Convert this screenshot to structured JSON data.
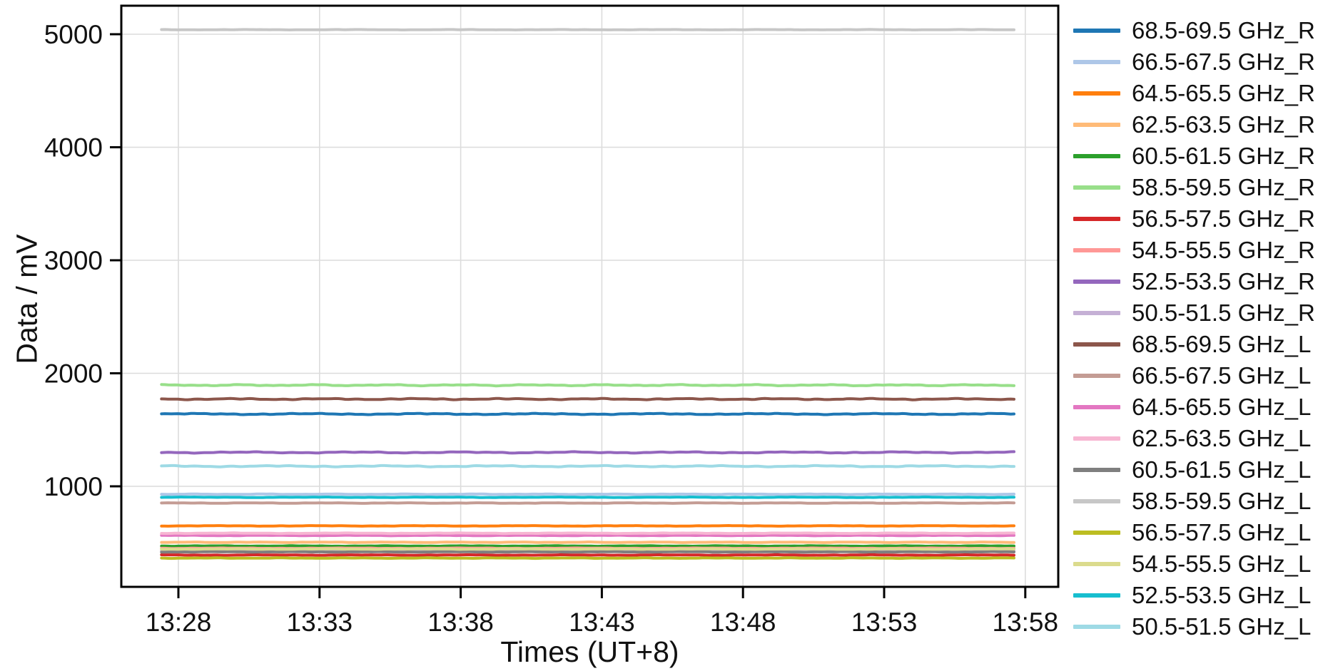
{
  "chart_data": {
    "type": "line",
    "title": "",
    "xlabel": "Times (UT+8)",
    "ylabel": "Data / mV",
    "x_tick_labels": [
      "13:28",
      "13:33",
      "13:38",
      "13:43",
      "13:48",
      "13:53",
      "13:58"
    ],
    "x_tick_interval_minutes": 5,
    "y_tick_values": [
      1000,
      2000,
      3000,
      4000,
      5000
    ],
    "y_tick_labels": [
      "1000",
      "2000",
      "3000",
      "4000",
      "5000"
    ],
    "ylim": [
      110,
      5250
    ],
    "grid": true,
    "legend_position": "right-outside",
    "series_x_extent_minutes_from_first_tick": [
      -0.6,
      29.6
    ],
    "series": [
      {
        "label": "68.5-69.5 GHz_R",
        "color": "#1f77b4",
        "value_mv": 1640
      },
      {
        "label": "66.5-67.5 GHz_R",
        "color": "#aec7e8",
        "value_mv": 930
      },
      {
        "label": "64.5-65.5 GHz_R",
        "color": "#ff7f0e",
        "value_mv": 650
      },
      {
        "label": "62.5-63.5 GHz_R",
        "color": "#ffbb78",
        "value_mv": 505
      },
      {
        "label": "60.5-61.5 GHz_R",
        "color": "#2ca02c",
        "value_mv": 472
      },
      {
        "label": "58.5-59.5 GHz_R",
        "color": "#98df8a",
        "value_mv": 1895
      },
      {
        "label": "56.5-57.5 GHz_R",
        "color": "#d62728",
        "value_mv": 392
      },
      {
        "label": "54.5-55.5 GHz_R",
        "color": "#ff9896",
        "value_mv": 452
      },
      {
        "label": "52.5-53.5 GHz_R",
        "color": "#9467bd",
        "value_mv": 1300
      },
      {
        "label": "50.5-51.5 GHz_R",
        "color": "#c5b0d5",
        "value_mv": 428
      },
      {
        "label": "68.5-69.5 GHz_L",
        "color": "#8c564b",
        "value_mv": 1772
      },
      {
        "label": "66.5-67.5 GHz_L",
        "color": "#c49c94",
        "value_mv": 852
      },
      {
        "label": "64.5-65.5 GHz_L",
        "color": "#e377c2",
        "value_mv": 565
      },
      {
        "label": "62.5-63.5 GHz_L",
        "color": "#f7b6d2",
        "value_mv": 585
      },
      {
        "label": "60.5-61.5 GHz_L",
        "color": "#7f7f7f",
        "value_mv": 420
      },
      {
        "label": "58.5-59.5 GHz_L",
        "color": "#c7c7c7",
        "value_mv": 5040
      },
      {
        "label": "56.5-57.5 GHz_L",
        "color": "#bcbd22",
        "value_mv": 365
      },
      {
        "label": "54.5-55.5 GHz_L",
        "color": "#dbdb8d",
        "value_mv": 445
      },
      {
        "label": "52.5-53.5 GHz_L",
        "color": "#17becf",
        "value_mv": 903
      },
      {
        "label": "50.5-51.5 GHz_L",
        "color": "#9edae5",
        "value_mv": 1178
      }
    ],
    "colors": {
      "grid": "#dcdcdc",
      "frame": "#000000",
      "tick_text": "#111111"
    }
  }
}
